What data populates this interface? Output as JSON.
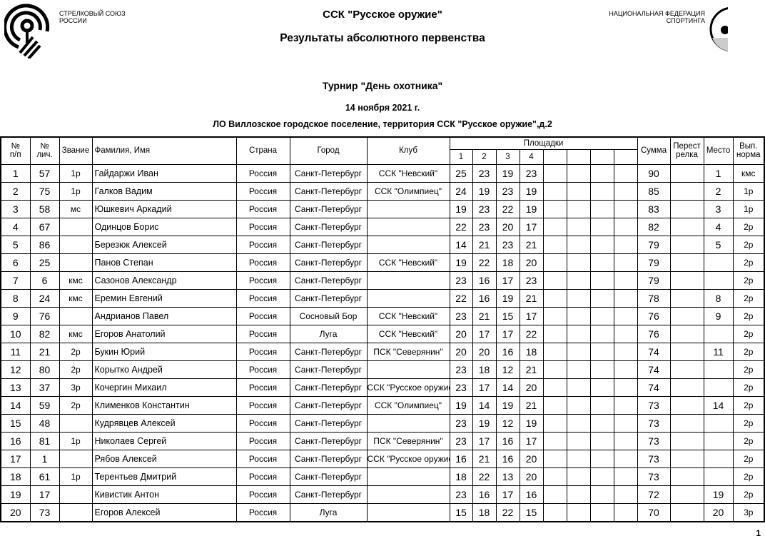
{
  "header": {
    "left_org": [
      "СТРЕЛКОВЫЙ СОЮЗ",
      "РОССИИ"
    ],
    "right_org": [
      "НАЦИОНАЛЬНАЯ ФЕДЕРАЦИЯ",
      "СПОРТИНГА"
    ],
    "club": "ССК \"Русское оружие\"",
    "subtitle": "Результаты абсолютного первенства",
    "tournament": "Турнир \"День охотника\"",
    "date": "14 ноября 2021 г.",
    "location": "ЛО Виллозское городское поселение, территория ССК \"Русское оружие\",д.2"
  },
  "table": {
    "headers": {
      "np": [
        "№",
        "п/п"
      ],
      "lic": [
        "№",
        "лич."
      ],
      "rank": "Звание",
      "name": "Фамилия, Имя",
      "country": "Страна",
      "city": "Город",
      "club": "Клуб",
      "platforms": "Площадки",
      "platform_nums": [
        "1",
        "2",
        "3",
        "4",
        "",
        "",
        "",
        ""
      ],
      "sum": "Сумма",
      "shootoff": [
        "Перест",
        "релка"
      ],
      "place": "Место",
      "norm": [
        "Вып.",
        "норма"
      ]
    },
    "rows": [
      {
        "n": "1",
        "lic": "57",
        "rank": "1р",
        "name": "Гайдаржи Иван",
        "country": "Россия",
        "city": "Санкт-Петербург",
        "club": "ССК \"Невский\"",
        "s": [
          "25",
          "23",
          "19",
          "23"
        ],
        "sum": "90",
        "shootoff": "",
        "place": "1",
        "norm": "кмс"
      },
      {
        "n": "2",
        "lic": "75",
        "rank": "1р",
        "name": "Галков Вадим",
        "country": "Россия",
        "city": "Санкт-Петербург",
        "club": "ССК \"Олимпиец\"",
        "s": [
          "24",
          "19",
          "23",
          "19"
        ],
        "sum": "85",
        "shootoff": "",
        "place": "2",
        "norm": "1р"
      },
      {
        "n": "3",
        "lic": "58",
        "rank": "мс",
        "name": "Юшкевич Аркадий",
        "country": "Россия",
        "city": "Санкт-Петербург",
        "club": "",
        "s": [
          "19",
          "23",
          "22",
          "19"
        ],
        "sum": "83",
        "shootoff": "",
        "place": "3",
        "norm": "1р"
      },
      {
        "n": "4",
        "lic": "67",
        "rank": "",
        "name": "Одинцов Борис",
        "country": "Россия",
        "city": "Санкт-Петербург",
        "club": "",
        "s": [
          "22",
          "23",
          "20",
          "17"
        ],
        "sum": "82",
        "shootoff": "",
        "place": "4",
        "norm": "2р"
      },
      {
        "n": "5",
        "lic": "86",
        "rank": "",
        "name": "Березюк Алексей",
        "country": "Россия",
        "city": "Санкт-Петербург",
        "club": "",
        "s": [
          "14",
          "21",
          "23",
          "21"
        ],
        "sum": "79",
        "shootoff": "",
        "place": "5",
        "norm": "2р"
      },
      {
        "n": "6",
        "lic": "25",
        "rank": "",
        "name": "Панов Степан",
        "country": "Россия",
        "city": "Санкт-Петербург",
        "club": "ССК \"Невский\"",
        "s": [
          "19",
          "22",
          "18",
          "20"
        ],
        "sum": "79",
        "shootoff": "",
        "place": "",
        "norm": "2р"
      },
      {
        "n": "7",
        "lic": "6",
        "rank": "кмс",
        "name": "Сазонов Александр",
        "country": "Россия",
        "city": "Санкт-Петербург",
        "club": "",
        "s": [
          "23",
          "16",
          "17",
          "23"
        ],
        "sum": "79",
        "shootoff": "",
        "place": "",
        "norm": "2р"
      },
      {
        "n": "8",
        "lic": "24",
        "rank": "кмс",
        "name": "Еремин Евгений",
        "country": "Россия",
        "city": "Санкт-Петербург",
        "club": "",
        "s": [
          "22",
          "16",
          "19",
          "21"
        ],
        "sum": "78",
        "shootoff": "",
        "place": "8",
        "norm": "2р"
      },
      {
        "n": "9",
        "lic": "76",
        "rank": "",
        "name": "Андрианов Павел",
        "country": "Россия",
        "city": "Сосновый Бор",
        "club": "ССК \"Невский\"",
        "s": [
          "23",
          "21",
          "15",
          "17"
        ],
        "sum": "76",
        "shootoff": "",
        "place": "9",
        "norm": "2р"
      },
      {
        "n": "10",
        "lic": "82",
        "rank": "кмс",
        "name": "Егоров Анатолий",
        "country": "Россия",
        "city": "Луга",
        "club": "ССК \"Невский\"",
        "s": [
          "20",
          "17",
          "17",
          "22"
        ],
        "sum": "76",
        "shootoff": "",
        "place": "",
        "norm": "2р"
      },
      {
        "n": "11",
        "lic": "21",
        "rank": "2р",
        "name": "Букин Юрий",
        "country": "Россия",
        "city": "Санкт-Петербург",
        "club": "ПСК \"Северянин\"",
        "s": [
          "20",
          "20",
          "16",
          "18"
        ],
        "sum": "74",
        "shootoff": "",
        "place": "11",
        "norm": "2р"
      },
      {
        "n": "12",
        "lic": "80",
        "rank": "2р",
        "name": "Корытко Андрей",
        "country": "Россия",
        "city": "Санкт-Петербург",
        "club": "",
        "s": [
          "23",
          "18",
          "12",
          "21"
        ],
        "sum": "74",
        "shootoff": "",
        "place": "",
        "norm": "2р"
      },
      {
        "n": "13",
        "lic": "37",
        "rank": "3р",
        "name": "Кочергин Михаил",
        "country": "Россия",
        "city": "Санкт-Петербург",
        "club": "ССК \"Русское оружие\"",
        "s": [
          "23",
          "17",
          "14",
          "20"
        ],
        "sum": "74",
        "shootoff": "",
        "place": "",
        "norm": "2р"
      },
      {
        "n": "14",
        "lic": "59",
        "rank": "2р",
        "name": "Клименков Константин",
        "country": "Россия",
        "city": "Санкт-Петербург",
        "club": "ССК \"Олимпиец\"",
        "s": [
          "19",
          "14",
          "19",
          "21"
        ],
        "sum": "73",
        "shootoff": "",
        "place": "14",
        "norm": "2р"
      },
      {
        "n": "15",
        "lic": "48",
        "rank": "",
        "name": "Кудрявцев Алексей",
        "country": "Россия",
        "city": "Санкт-Петербург",
        "club": "",
        "s": [
          "23",
          "19",
          "12",
          "19"
        ],
        "sum": "73",
        "shootoff": "",
        "place": "",
        "norm": "2р"
      },
      {
        "n": "16",
        "lic": "81",
        "rank": "1р",
        "name": "Николаев Сергей",
        "country": "Россия",
        "city": "Санкт-Петербург",
        "club": "ПСК \"Северянин\"",
        "s": [
          "23",
          "17",
          "16",
          "17"
        ],
        "sum": "73",
        "shootoff": "",
        "place": "",
        "norm": "2р"
      },
      {
        "n": "17",
        "lic": "1",
        "rank": "",
        "name": "Рябов Алексей",
        "country": "Россия",
        "city": "Санкт-Петербург",
        "club": "ССК \"Русское оружие\"",
        "s": [
          "16",
          "21",
          "16",
          "20"
        ],
        "sum": "73",
        "shootoff": "",
        "place": "",
        "norm": "2р"
      },
      {
        "n": "18",
        "lic": "61",
        "rank": "1р",
        "name": "Терентьев Дмитрий",
        "country": "Россия",
        "city": "Санкт-Петербург",
        "club": "",
        "s": [
          "18",
          "22",
          "13",
          "20"
        ],
        "sum": "73",
        "shootoff": "",
        "place": "",
        "norm": "2р"
      },
      {
        "n": "19",
        "lic": "17",
        "rank": "",
        "name": "Кивистик Антон",
        "country": "Россия",
        "city": "Санкт-Петербург",
        "club": "",
        "s": [
          "23",
          "16",
          "17",
          "16"
        ],
        "sum": "72",
        "shootoff": "",
        "place": "19",
        "norm": "2р"
      },
      {
        "n": "20",
        "lic": "73",
        "rank": "",
        "name": "Егоров Алексей",
        "country": "Россия",
        "city": "Луга",
        "club": "",
        "s": [
          "15",
          "18",
          "22",
          "15"
        ],
        "sum": "70",
        "shootoff": "",
        "place": "20",
        "norm": "3р"
      }
    ]
  },
  "page_number": "1"
}
